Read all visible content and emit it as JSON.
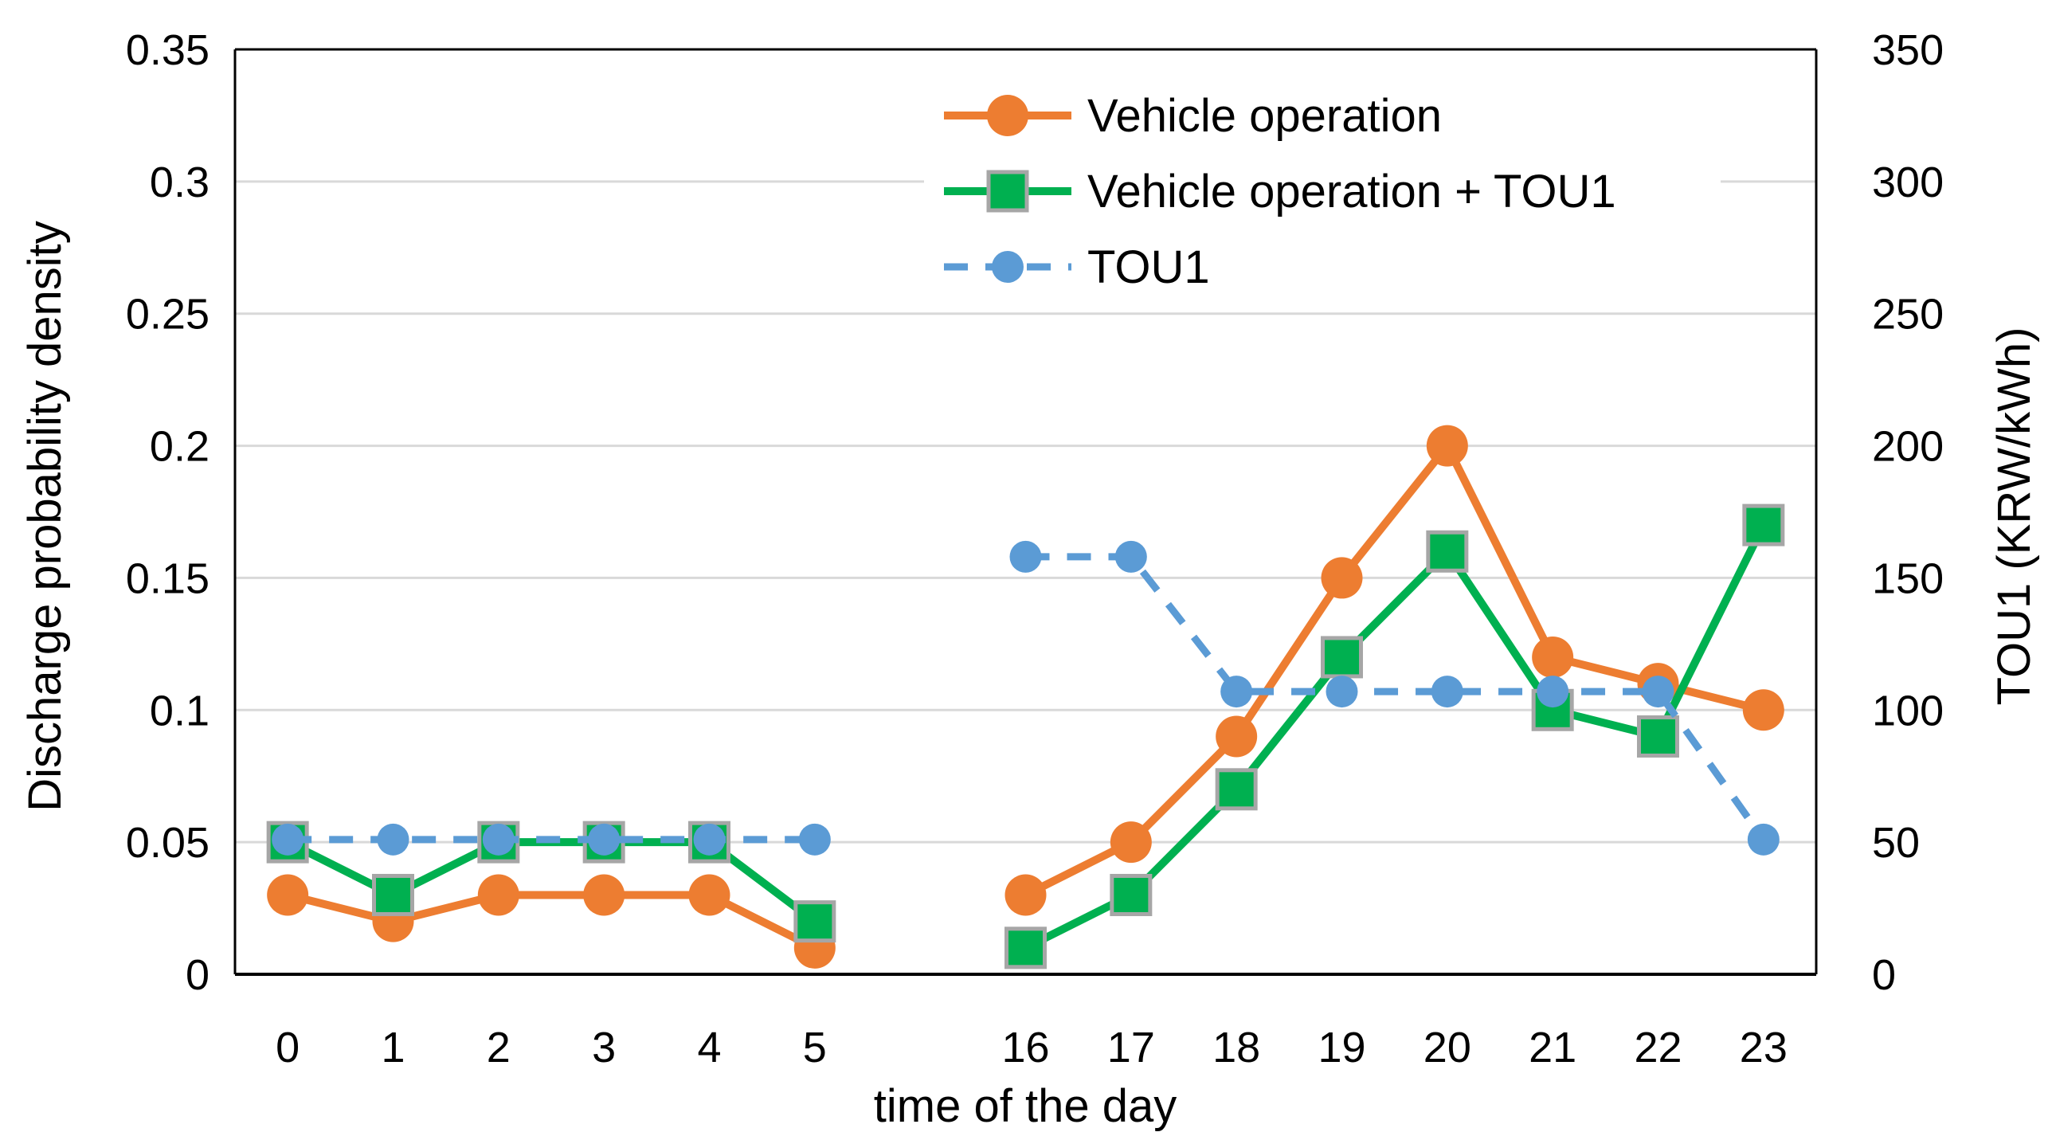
{
  "chart_data": {
    "type": "line",
    "xlabel": "time of the day",
    "ylabel": "Discharge probability density",
    "y2label": "TOU1 (KRW/kWh)",
    "categories": [
      "0",
      "1",
      "2",
      "3",
      "4",
      "5",
      "",
      "16",
      "17",
      "18",
      "19",
      "20",
      "21",
      "22",
      "23"
    ],
    "ylim": [
      0,
      0.35
    ],
    "y_ticks": [
      "0",
      "0.05",
      "0.1",
      "0.15",
      "0.2",
      "0.25",
      "0.3",
      "0.35"
    ],
    "y2lim": [
      0,
      350
    ],
    "y2_ticks": [
      "0",
      "50",
      "100",
      "150",
      "200",
      "250",
      "300",
      "350"
    ],
    "grid": true,
    "legend_position": "top-right",
    "series": [
      {
        "name": "Vehicle operation",
        "axis": "left",
        "color": "#ED7D31",
        "marker": "circle",
        "dash": "solid",
        "values": [
          0.03,
          0.02,
          0.03,
          0.03,
          0.03,
          0.01,
          null,
          0.03,
          0.05,
          0.09,
          0.15,
          0.2,
          0.12,
          0.11,
          0.1
        ]
      },
      {
        "name": "Vehicle operation + TOU1",
        "axis": "left",
        "color": "#00B050",
        "marker": "square",
        "dash": "solid",
        "values": [
          0.05,
          0.03,
          0.05,
          0.05,
          0.05,
          0.02,
          null,
          0.01,
          0.03,
          0.07,
          0.12,
          0.16,
          0.1,
          0.09,
          0.17
        ]
      },
      {
        "name": "TOU1",
        "axis": "right",
        "color": "#5B9BD5",
        "marker": "circle",
        "dash": "dashed",
        "values": [
          51,
          51,
          51,
          51,
          51,
          51,
          null,
          158,
          158,
          107,
          107,
          107,
          107,
          107,
          51
        ]
      }
    ]
  }
}
